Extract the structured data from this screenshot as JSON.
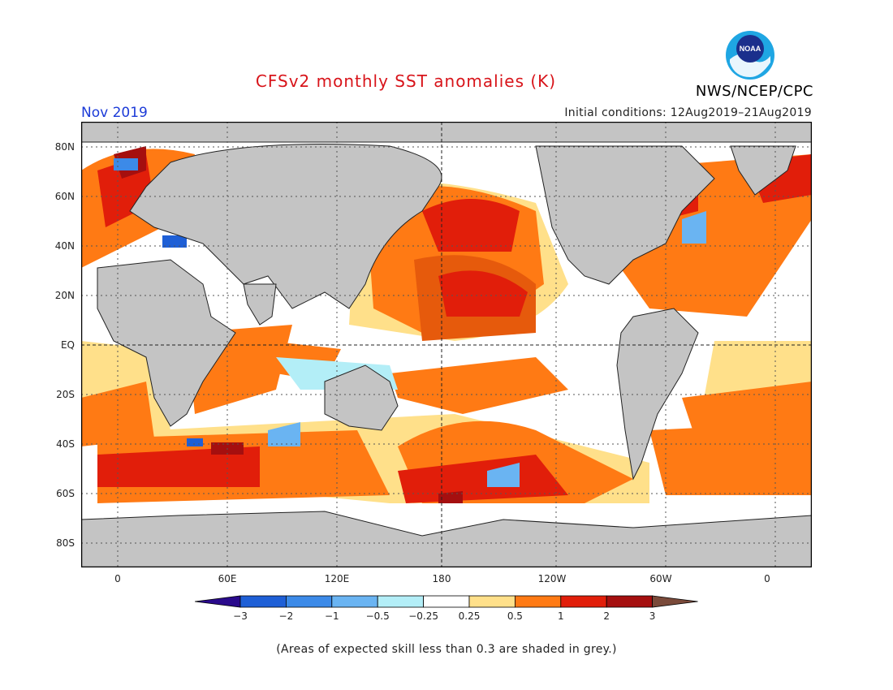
{
  "header": {
    "title": "CFSv2 monthly SST anomalies (K)",
    "month": "Nov 2019",
    "initial_conditions": "Initial conditions: 12Aug2019–21Aug2019",
    "agency": "NWS/NCEP/CPC",
    "logo_text": "NOAA"
  },
  "map": {
    "lat_labels": [
      "80N",
      "60N",
      "40N",
      "20N",
      "EQ",
      "20S",
      "40S",
      "60S",
      "80S"
    ],
    "lon_labels": [
      "0",
      "60E",
      "120E",
      "180",
      "120W",
      "60W",
      "0"
    ],
    "land_color": "#c4c4c4",
    "ocean_color": "#ffffff"
  },
  "colorbar": {
    "tick_labels": [
      "−3",
      "−2",
      "−1",
      "−0.5",
      "−0.25",
      "0.25",
      "0.5",
      "1",
      "2",
      "3"
    ],
    "colors": [
      "#2a0a8c",
      "#1e5fd6",
      "#3c8ae8",
      "#6ab4f2",
      "#b3eef7",
      "#ffffff",
      "#ffe08a",
      "#ff7a14",
      "#e11e0a",
      "#a50f0f",
      "#7a4a3a"
    ]
  },
  "footnote": "(Areas of expected skill less than 0.3 are shaded in grey.)"
}
